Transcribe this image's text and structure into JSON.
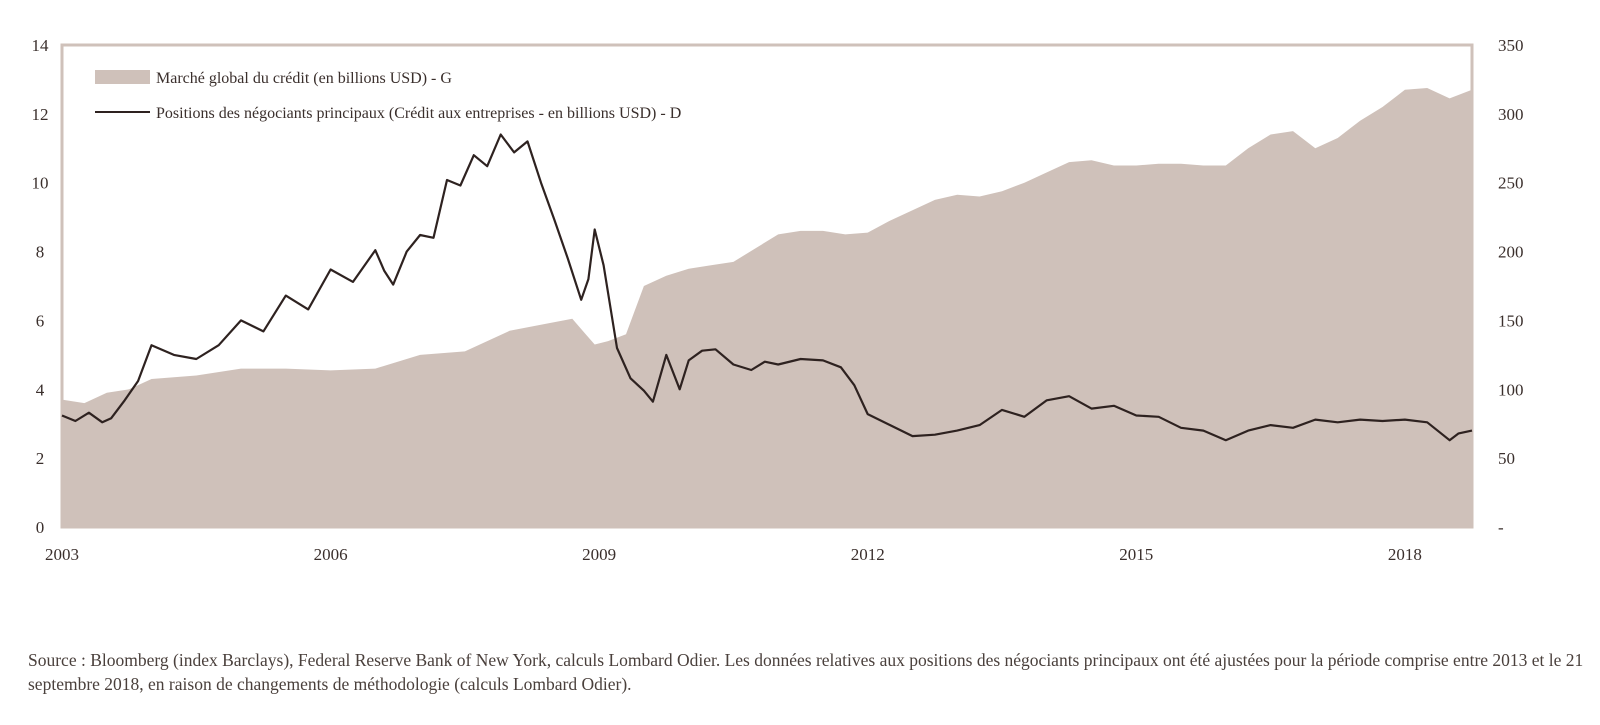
{
  "chart_data": {
    "type": "area",
    "title": "",
    "xlabel": "",
    "ylabel_left": "",
    "ylabel_right": "",
    "x_range": [
      2003.0,
      2018.75
    ],
    "x_ticks": [
      {
        "value": 2003,
        "label": "2003"
      },
      {
        "value": 2006,
        "label": "2006"
      },
      {
        "value": 2009,
        "label": "2009"
      },
      {
        "value": 2012,
        "label": "2012"
      },
      {
        "value": 2015,
        "label": "2015"
      },
      {
        "value": 2018,
        "label": "2018"
      }
    ],
    "ylim_left": [
      0,
      14
    ],
    "y_ticks_left": [
      "0",
      "2",
      "4",
      "6",
      "8",
      "10",
      "12",
      "14"
    ],
    "ylim_right": [
      0,
      350
    ],
    "y_ticks_right": [
      "-",
      "50",
      "100",
      "150",
      "200",
      "250",
      "300",
      "350"
    ],
    "grid": false,
    "legend_position": "top-left",
    "colors": {
      "area": "#cfc1ba",
      "line": "#2e2220",
      "frame": "#cfc1ba",
      "text": "#3a2f2c"
    },
    "series": [
      {
        "name": "Marché global du crédit (en billions USD) - G",
        "kind": "area",
        "axis": "left",
        "x": [
          2003.0,
          2003.25,
          2003.5,
          2003.75,
          2004.0,
          2004.5,
          2005.0,
          2005.5,
          2006.0,
          2006.5,
          2007.0,
          2007.5,
          2008.0,
          2008.4,
          2008.7,
          2008.85,
          2008.95,
          2009.1,
          2009.3,
          2009.5,
          2009.75,
          2010.0,
          2010.25,
          2010.5,
          2010.75,
          2011.0,
          2011.25,
          2011.5,
          2011.75,
          2012.0,
          2012.25,
          2012.5,
          2012.75,
          2013.0,
          2013.25,
          2013.5,
          2013.75,
          2014.0,
          2014.25,
          2014.5,
          2014.75,
          2015.0,
          2015.25,
          2015.5,
          2015.75,
          2016.0,
          2016.25,
          2016.5,
          2016.75,
          2017.0,
          2017.25,
          2017.5,
          2017.75,
          2018.0,
          2018.25,
          2018.5,
          2018.75
        ],
        "values": [
          3.7,
          3.6,
          3.9,
          4.0,
          4.3,
          4.4,
          4.6,
          4.6,
          4.55,
          4.6,
          5.0,
          5.1,
          5.7,
          5.9,
          6.05,
          5.6,
          5.3,
          5.4,
          5.6,
          7.0,
          7.3,
          7.5,
          7.6,
          7.7,
          8.1,
          8.5,
          8.6,
          8.6,
          8.5,
          8.55,
          8.9,
          9.2,
          9.5,
          9.65,
          9.6,
          9.75,
          10.0,
          10.3,
          10.6,
          10.65,
          10.5,
          10.5,
          10.55,
          10.55,
          10.5,
          10.5,
          11.0,
          11.4,
          11.5,
          11.0,
          11.3,
          11.8,
          12.2,
          12.7,
          12.75,
          12.45,
          12.7
        ]
      },
      {
        "name": "Positions des négociants principaux (Crédit aux entreprises - en billions USD) - D",
        "kind": "line",
        "axis": "right",
        "x": [
          2003.0,
          2003.15,
          2003.3,
          2003.45,
          2003.55,
          2003.7,
          2003.85,
          2004.0,
          2004.25,
          2004.5,
          2004.75,
          2005.0,
          2005.25,
          2005.5,
          2005.75,
          2006.0,
          2006.25,
          2006.5,
          2006.6,
          2006.7,
          2006.85,
          2007.0,
          2007.15,
          2007.3,
          2007.45,
          2007.6,
          2007.75,
          2007.9,
          2008.05,
          2008.2,
          2008.35,
          2008.5,
          2008.65,
          2008.8,
          2008.88,
          2008.95,
          2009.05,
          2009.2,
          2009.35,
          2009.5,
          2009.6,
          2009.75,
          2009.9,
          2010.0,
          2010.15,
          2010.3,
          2010.5,
          2010.7,
          2010.85,
          2011.0,
          2011.25,
          2011.5,
          2011.7,
          2011.85,
          2012.0,
          2012.25,
          2012.5,
          2012.75,
          2013.0,
          2013.25,
          2013.5,
          2013.75,
          2014.0,
          2014.25,
          2014.5,
          2014.75,
          2015.0,
          2015.25,
          2015.5,
          2015.75,
          2016.0,
          2016.25,
          2016.5,
          2016.75,
          2017.0,
          2017.25,
          2017.5,
          2017.75,
          2018.0,
          2018.25,
          2018.5,
          2018.6,
          2018.75
        ],
        "values": [
          81,
          77,
          83,
          76,
          79,
          92,
          106,
          132,
          125,
          122,
          132,
          150,
          142,
          168,
          158,
          187,
          178,
          201,
          186,
          176,
          200,
          212,
          210,
          252,
          248,
          270,
          262,
          285,
          272,
          280,
          250,
          223,
          195,
          165,
          180,
          216,
          190,
          130,
          108,
          99,
          91,
          125,
          100,
          121,
          128,
          129,
          118,
          114,
          120,
          118,
          122,
          121,
          116,
          103,
          82,
          74,
          66,
          67,
          70,
          74,
          85,
          80,
          92,
          95,
          86,
          88,
          81,
          80,
          72,
          70,
          63,
          70,
          74,
          72,
          78,
          76,
          78,
          77,
          78,
          76,
          63,
          68,
          70
        ]
      }
    ]
  },
  "legend": {
    "area_label": "Marché global du crédit (en billions USD) - G",
    "line_label": "Positions des négociants principaux (Crédit aux entreprises - en billions USD) - D"
  },
  "source_note": "Source : Bloomberg (index Barclays), Federal Reserve Bank of New York, calculs Lombard Odier. Les données relatives aux positions des négociants principaux ont été ajustées pour la période comprise entre 2013 et le 21 septembre 2018, en raison de changements de méthodologie (calculs Lombard Odier)."
}
